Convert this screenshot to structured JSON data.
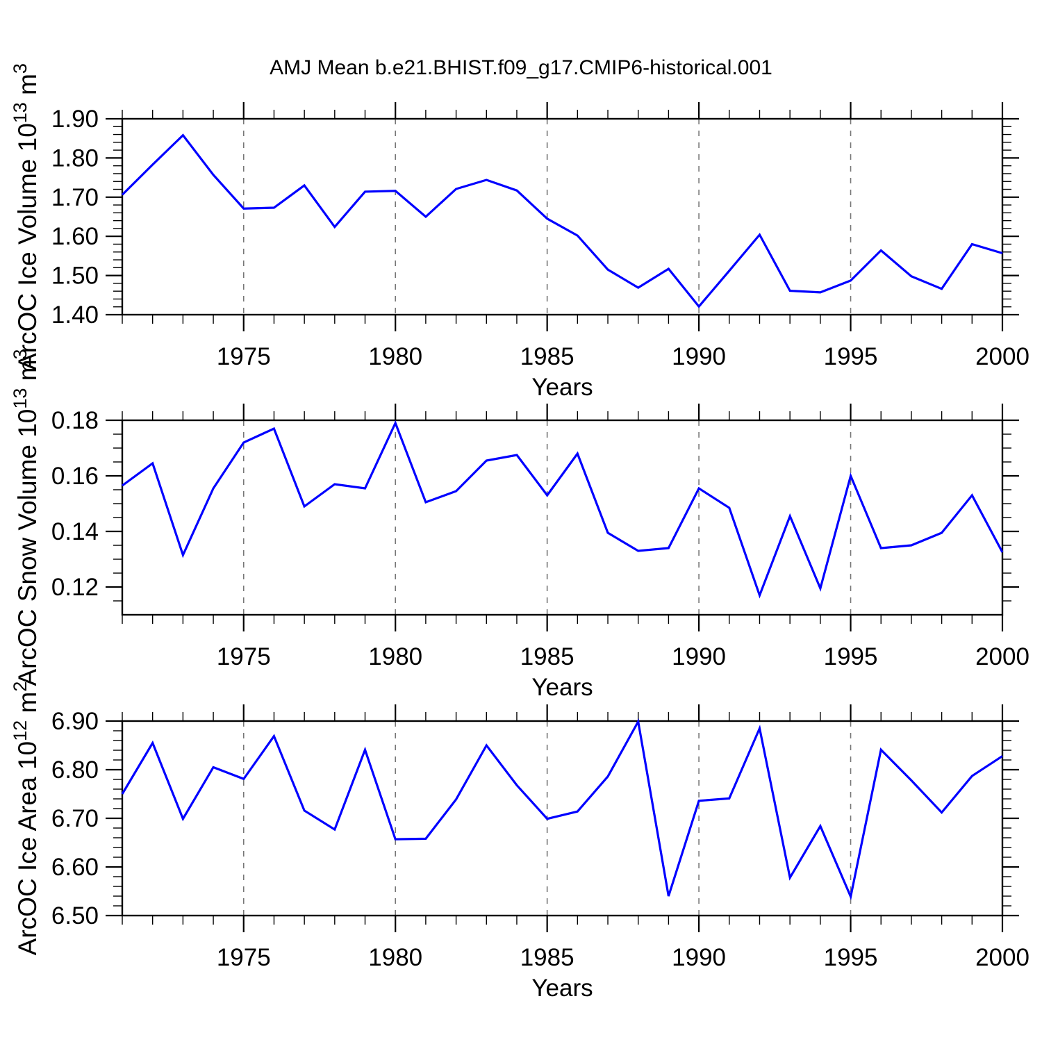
{
  "title": "AMJ Mean b.e21.BHIST.f09_g17.CMIP6-historical.001",
  "colors": {
    "line": "#0000ff",
    "axis": "#000000",
    "gridline": "#777777",
    "background": "#ffffff",
    "text": "#000000"
  },
  "x_axis": {
    "label": "Years",
    "xlim": [
      1971,
      2000
    ],
    "major_ticks": [
      1975,
      1980,
      1985,
      1990,
      1995,
      2000
    ],
    "grid_years": [
      1975,
      1980,
      1985,
      1990,
      1995
    ],
    "minor_step_years": 1,
    "years": [
      1971,
      1972,
      1973,
      1974,
      1975,
      1976,
      1977,
      1978,
      1979,
      1980,
      1981,
      1982,
      1983,
      1984,
      1985,
      1986,
      1987,
      1988,
      1989,
      1990,
      1991,
      1992,
      1993,
      1994,
      1995,
      1996,
      1997,
      1998,
      1999,
      2000
    ]
  },
  "chart_data": [
    {
      "type": "line",
      "name": "arcoc-ice-volume",
      "ylabel": "ArcOC Ice Volume 10¹³ m³",
      "ylabel_parts": [
        {
          "t": "ArcOC Ice Volume 10",
          "sup": false
        },
        {
          "t": "13",
          "sup": true
        },
        {
          "t": " m",
          "sup": false
        },
        {
          "t": "3",
          "sup": true
        }
      ],
      "ylim": [
        1.4,
        1.9
      ],
      "yticks": [
        1.4,
        1.5,
        1.6,
        1.7,
        1.8,
        1.9
      ],
      "ytick_decimals": 2,
      "y_minor_step": 0.02,
      "grid": "dashed-vertical",
      "legend": "none",
      "values": [
        1.706,
        1.783,
        1.858,
        1.757,
        1.671,
        1.673,
        1.73,
        1.624,
        1.714,
        1.716,
        1.65,
        1.721,
        1.744,
        1.717,
        1.645,
        1.602,
        1.515,
        1.469,
        1.517,
        1.421,
        1.512,
        1.604,
        1.461,
        1.457,
        1.487,
        1.564,
        1.498,
        1.466,
        1.58,
        1.557
      ]
    },
    {
      "type": "line",
      "name": "arcoc-snow-volume",
      "ylabel": "ArcOC Snow Volume 10¹³ m³",
      "ylabel_parts": [
        {
          "t": "ArcOC Snow Volume 10",
          "sup": false
        },
        {
          "t": "13",
          "sup": true
        },
        {
          "t": " m",
          "sup": false
        },
        {
          "t": "3",
          "sup": true
        }
      ],
      "ylim": [
        0.11,
        0.18
      ],
      "yticks": [
        0.12,
        0.14,
        0.16,
        0.18
      ],
      "ytick_decimals": 2,
      "y_minor_step": 0.005,
      "grid": "dashed-vertical",
      "legend": "none",
      "values": [
        0.1565,
        0.1645,
        0.1315,
        0.1555,
        0.172,
        0.177,
        0.149,
        0.157,
        0.1555,
        0.179,
        0.1505,
        0.1545,
        0.1655,
        0.1675,
        0.153,
        0.168,
        0.1395,
        0.133,
        0.134,
        0.1555,
        0.1485,
        0.117,
        0.1455,
        0.1195,
        0.16,
        0.134,
        0.135,
        0.1395,
        0.153,
        0.1325
      ]
    },
    {
      "type": "line",
      "name": "arcoc-ice-area",
      "ylabel": "ArcOC Ice Area 10¹² m²",
      "ylabel_parts": [
        {
          "t": "ArcOC Ice Area 10",
          "sup": false
        },
        {
          "t": "12",
          "sup": true
        },
        {
          "t": " m",
          "sup": false
        },
        {
          "t": "2",
          "sup": true
        }
      ],
      "ylim": [
        6.5,
        6.9
      ],
      "yticks": [
        6.5,
        6.6,
        6.7,
        6.8,
        6.9
      ],
      "ytick_decimals": 2,
      "y_minor_step": 0.02,
      "grid": "dashed-vertical",
      "legend": "none",
      "values": [
        6.75,
        6.855,
        6.699,
        6.805,
        6.781,
        6.869,
        6.716,
        6.677,
        6.841,
        6.657,
        6.658,
        6.739,
        6.85,
        6.768,
        6.699,
        6.714,
        6.786,
        6.899,
        6.54,
        6.736,
        6.741,
        6.885,
        6.578,
        6.684,
        6.539,
        6.841,
        6.778,
        6.712,
        6.787,
        6.828
      ]
    }
  ]
}
